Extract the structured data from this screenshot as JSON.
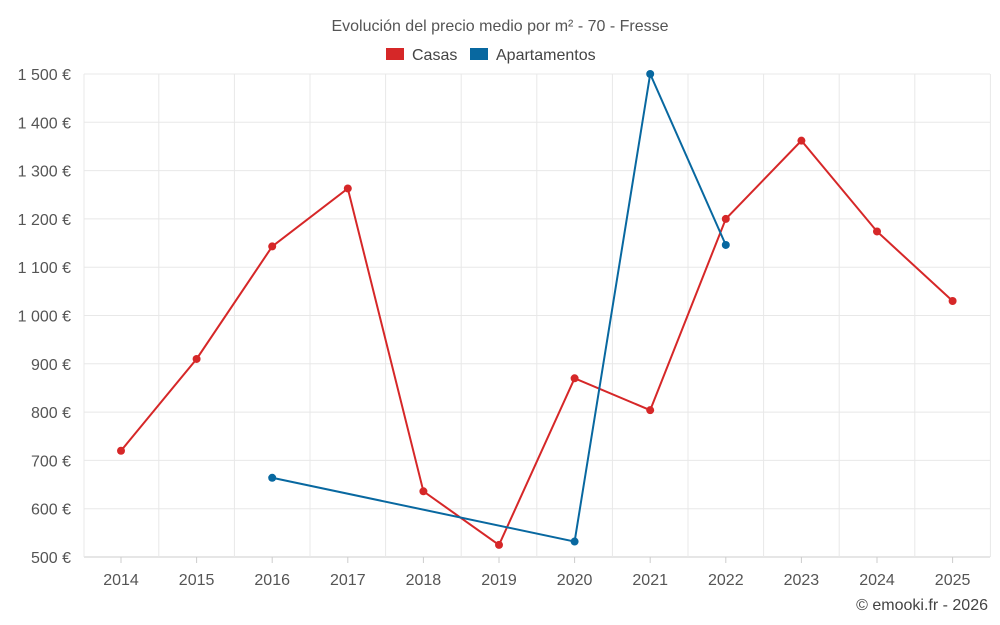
{
  "chart_data": {
    "type": "line",
    "title": "Evolución del precio medio por m² - 70 - Fresse",
    "categories": [
      "2014",
      "2015",
      "2016",
      "2017",
      "2018",
      "2019",
      "2020",
      "2021",
      "2022",
      "2023",
      "2024",
      "2025"
    ],
    "series": [
      {
        "name": "Casas",
        "color": "#d62728",
        "values": [
          720,
          910,
          1143,
          1263,
          636,
          525,
          870,
          804,
          1200,
          1362,
          1174,
          1030
        ]
      },
      {
        "name": "Apartamentos",
        "color": "#0868a0",
        "values": [
          null,
          null,
          664,
          null,
          null,
          null,
          532,
          1500,
          1146,
          null,
          null,
          null
        ]
      }
    ],
    "ylim": [
      500,
      1500
    ],
    "yticks": [
      500,
      600,
      700,
      800,
      900,
      1000,
      1100,
      1200,
      1300,
      1400,
      1500
    ],
    "ytick_labels": [
      "500 €",
      "600 €",
      "700 €",
      "800 €",
      "900 €",
      "1 000 €",
      "1 100 €",
      "1 200 €",
      "1 300 €",
      "1 400 €",
      "1 500 €"
    ],
    "xlabel": "",
    "ylabel": "",
    "grid": true,
    "legend_position": "top-center"
  },
  "credit": "© emooki.fr - 2026"
}
